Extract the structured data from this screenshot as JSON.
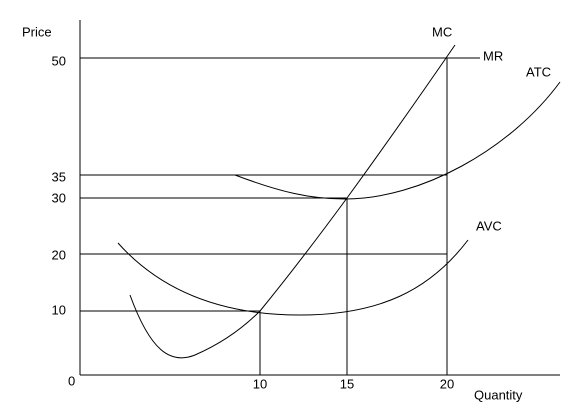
{
  "axes": {
    "y_label": "Price",
    "x_label": "Quantity",
    "origin": "0",
    "y_ticks": [
      "50",
      "35",
      "30",
      "20",
      "10"
    ],
    "x_ticks": [
      "10",
      "15",
      "20"
    ]
  },
  "curves": {
    "mc": "MC",
    "mr": "MR",
    "atc": "ATC",
    "avc": "AVC"
  }
}
